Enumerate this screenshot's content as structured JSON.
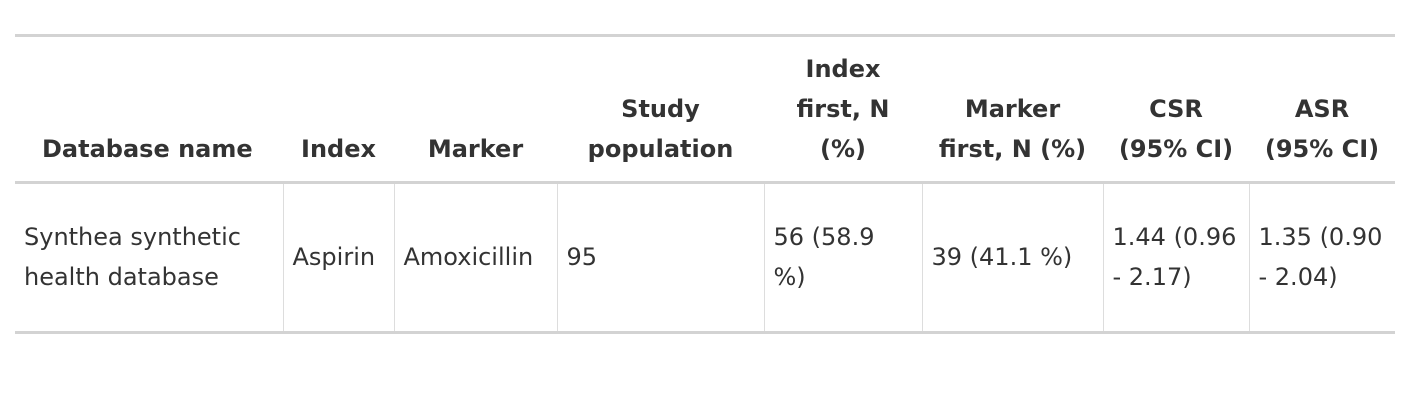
{
  "table": {
    "headers": [
      "Database name",
      "Index",
      "Marker",
      "Study population",
      "Index first, N (%)",
      "Marker first, N (%)",
      "CSR (95% CI)",
      "ASR (95% CI)"
    ],
    "rows": [
      [
        "Synthea synthetic health database",
        "Aspirin",
        "Amoxicillin",
        "95",
        "56 (58.9 %)",
        "39 (41.1 %)",
        "1.44 (0.96 - 2.17)",
        "1.35 (0.90 - 2.04)"
      ]
    ]
  }
}
